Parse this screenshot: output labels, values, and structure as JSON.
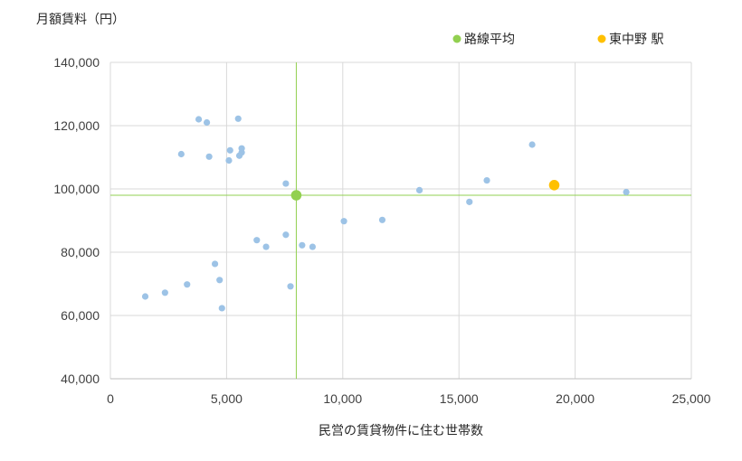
{
  "chart_data": {
    "type": "scatter",
    "ylabel": "月額賃料（円）",
    "xlabel": "民営の賃貸物件に住む世帯数",
    "xlim": [
      0,
      25000
    ],
    "ylim": [
      40000,
      140000
    ],
    "xticks": [
      "0",
      "5,000",
      "10,000",
      "15,000",
      "20,000",
      "25,000"
    ],
    "yticks": [
      "40,000",
      "60,000",
      "80,000",
      "100,000",
      "120,000",
      "140,000"
    ],
    "grid": true,
    "legend_position": "top-right",
    "series": [
      {
        "color": "#9dc3e6",
        "points": [
          [
            1500,
            66000
          ],
          [
            2350,
            67200
          ],
          [
            3300,
            69800
          ],
          [
            3050,
            111000
          ],
          [
            3800,
            122000
          ],
          [
            4150,
            121000
          ],
          [
            4250,
            110200
          ],
          [
            4500,
            76300
          ],
          [
            4700,
            71200
          ],
          [
            4800,
            62300
          ],
          [
            5100,
            109000
          ],
          [
            5150,
            112200
          ],
          [
            5500,
            122200
          ],
          [
            5550,
            110500
          ],
          [
            5650,
            111500
          ],
          [
            5650,
            112800
          ],
          [
            6300,
            83800
          ],
          [
            6700,
            81700
          ],
          [
            7550,
            101700
          ],
          [
            7550,
            85500
          ],
          [
            7750,
            69200
          ],
          [
            8250,
            82200
          ],
          [
            8700,
            81700
          ],
          [
            10050,
            89800
          ],
          [
            11700,
            90200
          ],
          [
            13300,
            99600
          ],
          [
            15450,
            95900
          ],
          [
            16200,
            102700
          ],
          [
            18150,
            114000
          ],
          [
            22200,
            99000
          ]
        ]
      },
      {
        "name": "路線平均",
        "color": "#92d050",
        "points": [
          [
            8000,
            98000
          ]
        ]
      },
      {
        "name": "東中野 駅",
        "color": "#ffc000",
        "points": [
          [
            19100,
            101200
          ]
        ]
      }
    ],
    "reference_lines": {
      "x": 8000,
      "y": 98000,
      "color": "#92d050"
    }
  }
}
